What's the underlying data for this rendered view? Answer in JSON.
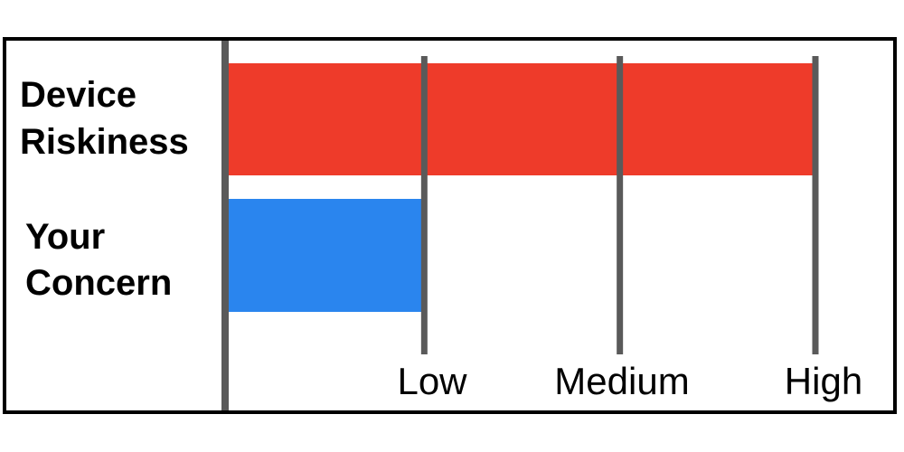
{
  "chart_data": {
    "type": "bar",
    "orientation": "horizontal",
    "categories": [
      [
        "Device",
        "Riskiness"
      ],
      [
        "Your",
        "Concern"
      ]
    ],
    "values": [
      3,
      1
    ],
    "bar_colors": [
      "#ee3b2a",
      "#2a85ee"
    ],
    "tick_labels": [
      "Low",
      "Medium",
      "High"
    ],
    "tick_values": [
      1,
      2,
      3
    ],
    "xlim": [
      0,
      3
    ],
    "gridline_color": "#5a5a5a",
    "frame_color": "#000000"
  }
}
